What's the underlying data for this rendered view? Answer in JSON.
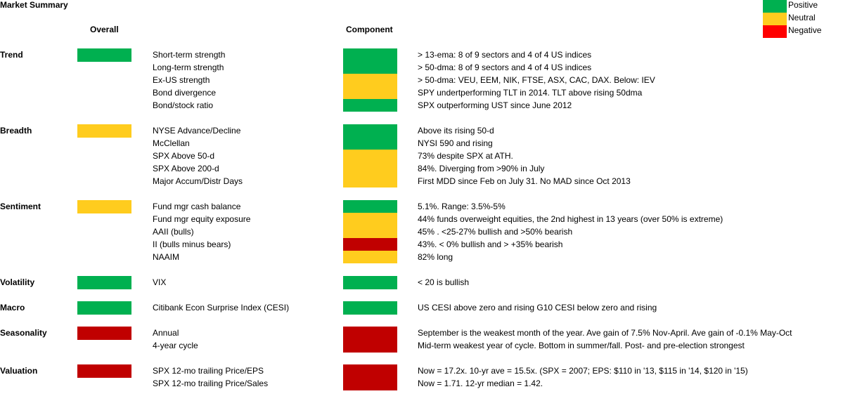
{
  "title": "Market Summary",
  "headers": {
    "overall": "Overall",
    "component": "Component"
  },
  "legend": [
    {
      "label": "Positive",
      "color": "#00b050"
    },
    {
      "label": "Neutral",
      "color": "#ffcc1e"
    },
    {
      "label": "Negative",
      "color": "#ff0000"
    }
  ],
  "colors": {
    "positive": "#00b050",
    "neutral": "#ffcc1e",
    "negative": "#c00000"
  },
  "sections": [
    {
      "name": "Trend",
      "overall": "positive",
      "items": [
        {
          "label": "Short-term strength",
          "comment": "> 13-ema: 8 of 9 sectors and 4 of 4 US indices"
        },
        {
          "label": "Long-term strength",
          "comment": "> 50-dma: 8 of 9 sectors and 4 of 4 US indices"
        },
        {
          "label": "Ex-US strength",
          "comment": "> 50-dma: VEU, EEM, NIK, FTSE, ASX, CAC, DAX. Below: IEV"
        },
        {
          "label": "Bond divergence",
          "comment": "SPY undertperforming TLT in 2014. TLT above rising 50dma"
        },
        {
          "label": "Bond/stock ratio",
          "comment": "SPX outperforming UST since June 2012"
        }
      ]
    },
    {
      "name": "Breadth",
      "overall": "neutral",
      "items": [
        {
          "label": "NYSE Advance/Decline",
          "comment": "Above its rising 50-d"
        },
        {
          "label": "McClellan",
          "comment": "NYSI 590 and rising"
        },
        {
          "label": "SPX Above 50-d",
          "comment": "73% despite SPX at ATH."
        },
        {
          "label": "SPX Above 200-d",
          "comment": "84%. Diverging from >90% in July"
        },
        {
          "label": "Major Accum/Distr Days",
          "comment": "First MDD since Feb on July 31. No MAD since Oct 2013"
        }
      ]
    },
    {
      "name": "Sentiment",
      "overall": "neutral",
      "items": [
        {
          "label": "Fund mgr cash balance",
          "comment": "5.1%. Range: 3.5%-5%"
        },
        {
          "label": "Fund mgr equity exposure",
          "comment": "44% funds overweight equities, the 2nd highest in 13 years (over 50% is extreme)"
        },
        {
          "label": "AAII (bulls)",
          "comment": "45% . <25-27% bullish and >50% bearish"
        },
        {
          "label": "II (bulls minus bears)",
          "comment": "43%. < 0% bullish and > +35% bearish"
        },
        {
          "label": "NAAIM",
          "comment": "82% long"
        }
      ]
    },
    {
      "name": "Volatility",
      "overall": "positive",
      "items": [
        {
          "label": "VIX",
          "comment": "< 20 is bullish"
        }
      ]
    },
    {
      "name": "Macro",
      "overall": "positive",
      "items": [
        {
          "label": "Citibank Econ Surprise Index (CESI)",
          "comment": "US CESI above zero and rising  G10 CESI below zero and rising"
        }
      ]
    },
    {
      "name": "Seasonality",
      "overall": "negative",
      "items": [
        {
          "label": "Annual",
          "comment": "September is the weakest month of the year. Ave gain of 7.5% Nov-April. Ave gain of -0.1% May-Oct"
        },
        {
          "label": "4-year cycle",
          "comment": "Mid-term weakest year of cycle. Bottom in summer/fall. Post- and pre-election strongest"
        }
      ]
    },
    {
      "name": "Valuation",
      "overall": "negative",
      "items": [
        {
          "label": "SPX 12-mo trailing Price/EPS",
          "comment": "Now = 17.2x. 10-yr ave = 15.5x.  (SPX = 2007; EPS: $110 in '13, $115 in '14, $120 in '15)"
        },
        {
          "label": "SPX 12-mo trailing Price/Sales",
          "comment": "Now = 1.71. 12-yr median = 1.42."
        }
      ]
    }
  ]
}
